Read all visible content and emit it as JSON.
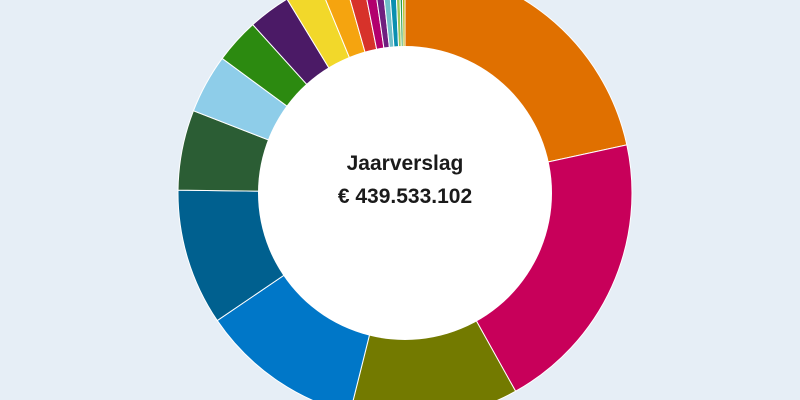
{
  "chart_data": {
    "type": "donut",
    "title": "Jaarverslag",
    "total": "€ 439.533.102",
    "legend": "none",
    "slices": [
      {
        "value": 21.6,
        "color": "#e07000"
      },
      {
        "value": 20.3,
        "color": "#c8005a"
      },
      {
        "value": 12.0,
        "color": "#737a00"
      },
      {
        "value": 11.6,
        "color": "#0077c8"
      },
      {
        "value": 9.7,
        "color": "#00608f"
      },
      {
        "value": 5.7,
        "color": "#2b5d34"
      },
      {
        "value": 4.2,
        "color": "#8ecde9"
      },
      {
        "value": 3.2,
        "color": "#2c8a10"
      },
      {
        "value": 3.0,
        "color": "#4b1a66"
      },
      {
        "value": 2.5,
        "color": "#f2d82a"
      },
      {
        "value": 1.8,
        "color": "#f5a40f"
      },
      {
        "value": 1.3,
        "color": "#d7322a"
      },
      {
        "value": 0.8,
        "color": "#b2006e"
      },
      {
        "value": 0.6,
        "color": "#6f1f7f"
      },
      {
        "value": 0.5,
        "color": "#6fbfc9"
      },
      {
        "value": 0.5,
        "color": "#0a8fb0"
      },
      {
        "value": 0.3,
        "color": "#9ac65a"
      },
      {
        "value": 0.2,
        "color": "#2a9d4b"
      },
      {
        "value": 0.2,
        "color": "#b0b000"
      }
    ]
  }
}
